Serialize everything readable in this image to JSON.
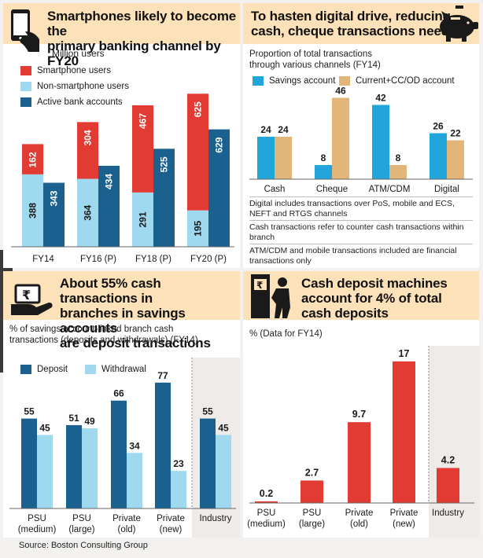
{
  "colors": {
    "red": "#e23b33",
    "light_blue": "#9ed9ef",
    "navy": "#1a6190",
    "blue": "#22a5db",
    "tan": "#e2b578",
    "header_bg": "#fde1b9",
    "industry_bg": "#efebe9"
  },
  "source": "Source: Boston Consulting Group",
  "panel1": {
    "title_line1": "Smartphones likely to become the",
    "title_line2": "primary banking channel by FY20",
    "icon": "smartphone-hand-icon",
    "unit": "Million users"
  },
  "panel2": {
    "title_line1": "To hasten digital drive, reducing",
    "title_line2": "cash, cheque transactions needed",
    "icon": "piggy-bank-icon",
    "subtitle_line1": "Proportion of total transactions",
    "subtitle_line2": "through various channels (FY14)",
    "notes": [
      "Digital includes transactions over PoS, mobile and ECS, NEFT and RTGS channels",
      "Cash transactions refer to counter cash transactions within branch",
      "ATM/CDM and mobile transactions included are financial transactions only"
    ]
  },
  "panel3": {
    "title_line1": "About 55% cash transactions in",
    "title_line2": "branches in savings accounts",
    "title_line3": "are deposit transactions",
    "icon": "rupee-hand-icon",
    "subtitle_line1": "% of savings account-linked branch cash",
    "subtitle_line2": "transactions (deposits and withdrawals) (FY14)"
  },
  "panel4": {
    "title_line1": "Cash deposit machines",
    "title_line2": "account for 4% of total",
    "title_line3": "cash deposits",
    "icon": "atm-machine-icon",
    "subtitle": "% (Data for FY14)"
  },
  "chart_data": [
    {
      "type": "bar",
      "stacked_with_side_bar": true,
      "categories": [
        "FY14",
        "FY16 (P)",
        "FY18 (P)",
        "FY20 (P)"
      ],
      "series": [
        {
          "name": "Smartphone users",
          "values": [
            162,
            304,
            467,
            625
          ],
          "color": "#e23b33",
          "stack": "users"
        },
        {
          "name": "Non-smartphone users",
          "values": [
            388,
            364,
            291,
            195
          ],
          "color": "#9ed9ef",
          "stack": "users"
        },
        {
          "name": "Active bank accounts",
          "values": [
            343,
            434,
            525,
            629
          ],
          "color": "#1a6190",
          "stack": "accounts"
        }
      ],
      "ylabel": "Million users",
      "ylim": [
        0,
        820
      ],
      "legend": "top-left"
    },
    {
      "type": "bar",
      "categories": [
        "Cash",
        "Cheque",
        "ATM/CDM",
        "Digital"
      ],
      "series": [
        {
          "name": "Savings account",
          "values": [
            24,
            8,
            42,
            26
          ],
          "color": "#22a5db"
        },
        {
          "name": "Current+CC/OD account",
          "values": [
            24,
            46,
            8,
            22
          ],
          "color": "#e2b578"
        }
      ],
      "ylim": [
        0,
        48
      ],
      "legend": "top"
    },
    {
      "type": "bar",
      "categories": [
        "PSU (medium)",
        "PSU (large)",
        "Private (old)",
        "Private (new)",
        "Industry"
      ],
      "series": [
        {
          "name": "Deposit",
          "values": [
            55,
            51,
            66,
            77,
            55
          ],
          "color": "#1a6190"
        },
        {
          "name": "Withdrawal",
          "values": [
            45,
            49,
            34,
            23,
            45
          ],
          "color": "#9ed9ef"
        }
      ],
      "ylim": [
        0,
        80
      ],
      "legend": "top-left",
      "highlight_category": "Industry"
    },
    {
      "type": "bar",
      "categories": [
        "PSU (medium)",
        "PSU (large)",
        "Private (old)",
        "Private (new)",
        "Industry"
      ],
      "series": [
        {
          "values": [
            0.2,
            2.7,
            9.7,
            17,
            4.2
          ],
          "color": "#e23b33"
        }
      ],
      "ylim": [
        0,
        17.5
      ],
      "highlight_category": "Industry"
    }
  ]
}
